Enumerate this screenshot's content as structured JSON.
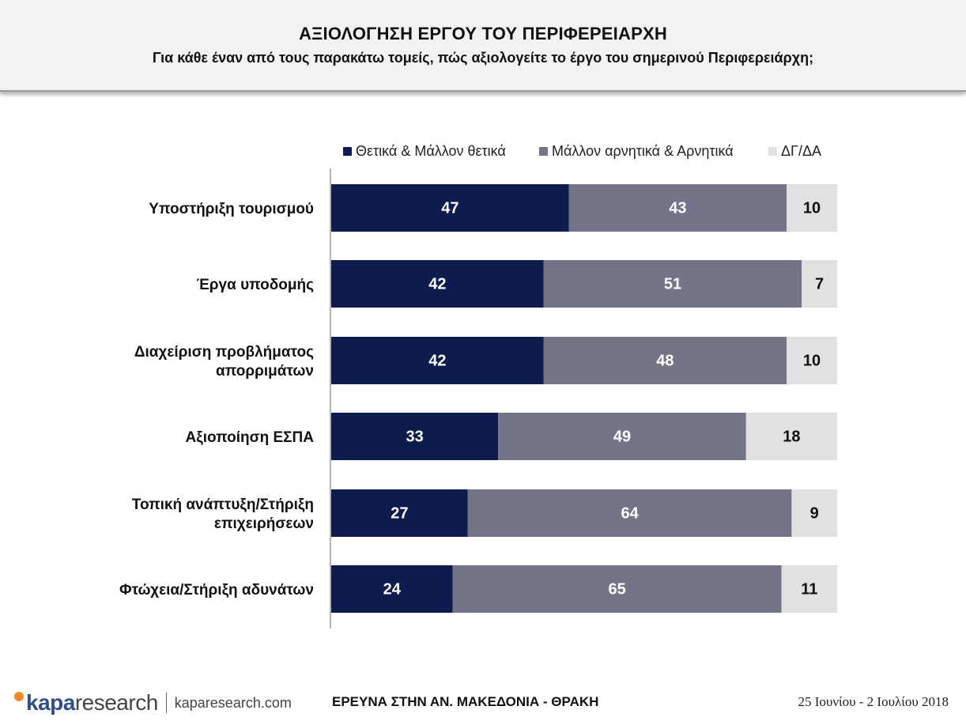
{
  "header": {
    "title": "ΑΞΙΟΛΟΓΗΣΗ ΕΡΓΟΥ ΤΟΥ ΠΕΡΙΦΕΡΕΙΑΡΧΗ",
    "subtitle": "Για κάθε έναν από τους παρακάτω τομείς, πώς αξιολογείτε το έργο του σημερινού Περιφερειάρχη;"
  },
  "chart_data": {
    "type": "bar",
    "orientation": "horizontal",
    "stacked": true,
    "categories": [
      [
        "Υποστήριξη τουρισμού"
      ],
      [
        "Έργα υποδομής"
      ],
      [
        "Διαχείριση προβλήματος",
        "απορριμάτων"
      ],
      [
        "Αξιοποίηση ΕΣΠΑ"
      ],
      [
        "Τοπική ανάπτυξη/Στήριξη",
        "επιχειρήσεων"
      ],
      [
        "Φτώχεια/Στήριξη αδυνάτων"
      ]
    ],
    "series": [
      {
        "name": "Θετικά & Μάλλον θετικά",
        "color": "#0d1b4f",
        "label_color": "#ffffff",
        "values": [
          47,
          42,
          42,
          33,
          27,
          24
        ]
      },
      {
        "name": "Μάλλον αρνητικά & Αρνητικά",
        "color": "#737488",
        "label_color": "#ffffff",
        "values": [
          43,
          51,
          48,
          49,
          64,
          65
        ]
      },
      {
        "name": "ΔΓ/ΔΑ",
        "color": "#e1e1e1",
        "label_color": "#111111",
        "values": [
          10,
          7,
          10,
          18,
          9,
          11
        ]
      }
    ],
    "xlim": [
      0,
      100
    ],
    "legend_position": "top",
    "grid": false
  },
  "footer": {
    "brand_bold": "kapa",
    "brand_light": "research",
    "site": "kaparesearch.com",
    "survey": "ΕΡΕΥΝΑ ΣΤΗΝ ΑΝ. ΜΑΚΕΔΟΝΙΑ - ΘΡΑΚΗ",
    "dates": "25 Ιουνίου - 2 Ιουλίου 2018"
  }
}
